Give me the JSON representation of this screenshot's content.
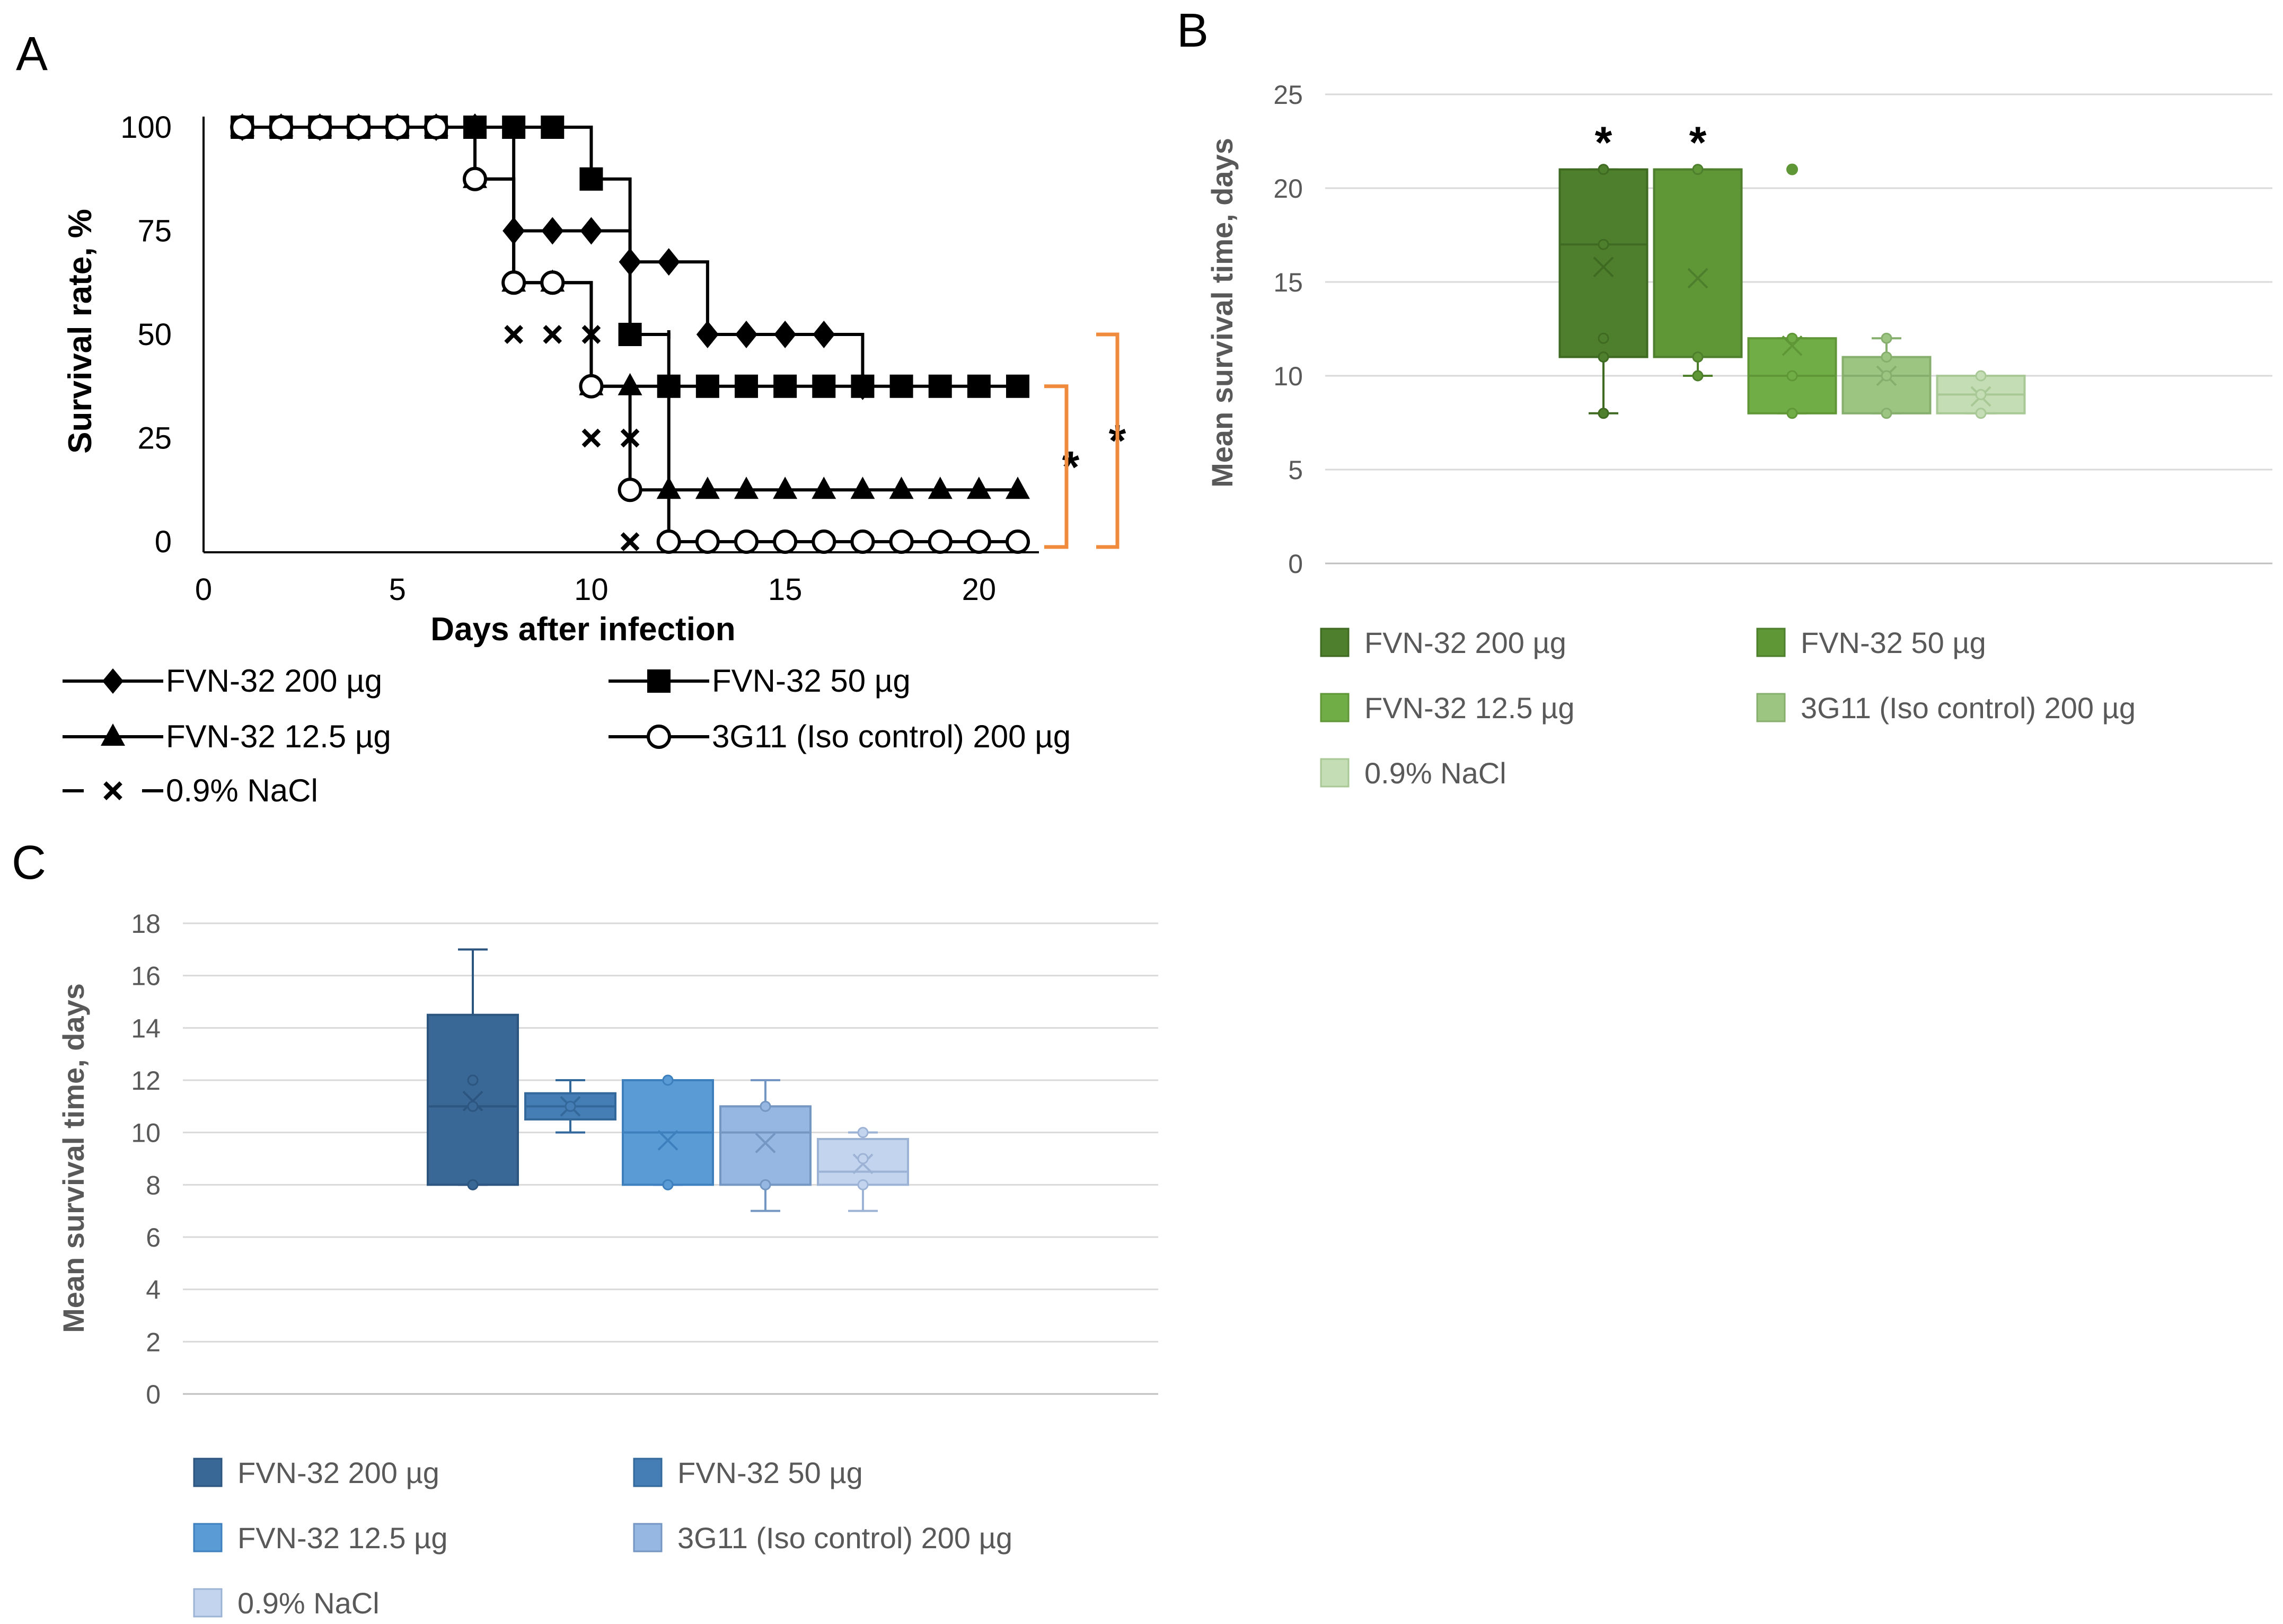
{
  "figure": {
    "panel_labels": [
      "A",
      "B",
      "C"
    ]
  },
  "colors": {
    "orange_bracket": "#F08A3C",
    "green": [
      "#4E7F2C",
      "#5F9636",
      "#70AD47",
      "#9CC581",
      "#C4DDB4"
    ],
    "green_line": [
      "#3F6A22",
      "#4E7F2C",
      "#5F9636",
      "#86AE6C",
      "#A8C895"
    ],
    "blue": [
      "#3A6896",
      "#457EB4",
      "#5B9BD5",
      "#95B7E1",
      "#C3D5EE"
    ],
    "blue_line": [
      "#2C5580",
      "#33689B",
      "#3E7FBE",
      "#7396C2",
      "#9DB3D6"
    ]
  },
  "chart_data": [
    {
      "panel": "A",
      "type": "line",
      "xlabel": "Days after infection",
      "ylabel": "Survival rate, %",
      "xlim": [
        0,
        21
      ],
      "ylim": [
        0,
        100
      ],
      "xticks": [
        0,
        5,
        10,
        15,
        20
      ],
      "yticks": [
        0,
        25,
        50,
        75,
        100
      ],
      "significance": [
        "*",
        "*"
      ],
      "series": [
        {
          "name": "FVN-32 200 µg",
          "marker": "diamond",
          "x": [
            1,
            2,
            3,
            4,
            5,
            6,
            7,
            8,
            9,
            10,
            11,
            12,
            13,
            14,
            15,
            16,
            17
          ],
          "y": [
            100,
            100,
            100,
            100,
            100,
            100,
            100,
            75,
            75,
            75,
            67.5,
            67.5,
            50,
            50,
            50,
            50,
            37.5
          ],
          "stairs": [
            [
              8,
              75
            ],
            [
              11,
              67.5
            ],
            [
              12,
              50
            ],
            [
              17,
              37.5
            ]
          ]
        },
        {
          "name": "FVN-32 50 µg",
          "marker": "square",
          "x": [
            1,
            2,
            3,
            4,
            5,
            6,
            7,
            8,
            9,
            10,
            11,
            12,
            13,
            14,
            15,
            16,
            17,
            18,
            19,
            20,
            21
          ],
          "y": [
            100,
            100,
            100,
            100,
            100,
            100,
            100,
            100,
            100,
            87.5,
            50,
            37.5,
            37.5,
            37.5,
            37.5,
            37.5,
            37.5,
            37.5,
            37.5,
            37.5,
            37.5
          ],
          "stairs": [
            [
              10,
              87.5
            ],
            [
              11,
              50
            ],
            [
              12,
              37.5
            ]
          ]
        },
        {
          "name": "FVN-32 12.5 µg",
          "marker": "triangle",
          "x": [
            1,
            2,
            3,
            4,
            5,
            6,
            7,
            8,
            9,
            10,
            11,
            12,
            13,
            14,
            15,
            16,
            17,
            18,
            19,
            20,
            21
          ],
          "y": [
            100,
            100,
            100,
            100,
            100,
            100,
            87.5,
            62.5,
            62.5,
            37.5,
            37.5,
            12.5,
            12.5,
            12.5,
            12.5,
            12.5,
            12.5,
            12.5,
            12.5,
            12.5,
            12.5
          ],
          "stairs": [
            [
              8,
              62.5
            ],
            [
              10,
              37.5
            ],
            [
              12,
              12.5
            ]
          ]
        },
        {
          "name": "3G11 (Iso control) 200 µg",
          "marker": "circle",
          "x": [
            1,
            2,
            3,
            4,
            5,
            6,
            7,
            8,
            9,
            10,
            11,
            12,
            13,
            14,
            15,
            16,
            17,
            18,
            19,
            20,
            21
          ],
          "y": [
            100,
            100,
            100,
            100,
            100,
            100,
            87.5,
            62.5,
            62.5,
            37.5,
            12.5,
            0,
            0,
            0,
            0,
            0,
            0,
            0,
            0,
            0,
            0
          ],
          "stairs": [
            [
              7,
              87.5
            ],
            [
              8,
              62.5
            ],
            [
              10,
              37.5
            ],
            [
              11,
              12.5
            ],
            [
              12,
              0
            ]
          ]
        },
        {
          "name": "0.9% NaCl",
          "marker": "cross",
          "x": [
            8,
            9,
            10,
            11
          ],
          "y": [
            50,
            50,
            50,
            25
          ],
          "extra": [
            [
              10,
              25
            ],
            [
              11,
              0
            ]
          ]
        }
      ]
    },
    {
      "panel": "B",
      "type": "box",
      "ylabel": "Mean survival time, days",
      "ylim": [
        0,
        25
      ],
      "yticks": [
        0,
        5,
        10,
        15,
        20,
        25
      ],
      "series": [
        {
          "name": "FVN-32 200 µg",
          "whisker_low": 8,
          "q1": 11,
          "median": 17,
          "q3": 21,
          "whisker_high": 21,
          "mean": 15.8,
          "points": [
            21,
            17,
            12,
            11,
            8
          ],
          "significance": "*"
        },
        {
          "name": "FVN-32 50 µg",
          "whisker_low": 10,
          "q1": 11,
          "median": 21,
          "q3": 21,
          "whisker_high": 21,
          "mean": 15.2,
          "points": [
            21,
            11,
            10
          ],
          "significance": "*"
        },
        {
          "name": "FVN-32 12.5 µg",
          "whisker_low": 8,
          "q1": 8,
          "median": 10,
          "q3": 12,
          "whisker_high": 12,
          "mean": 11.6,
          "points": [
            12,
            10,
            8
          ],
          "outliers": [
            21
          ]
        },
        {
          "name": "3G11 (Iso control) 200 µg",
          "whisker_low": 8,
          "q1": 8,
          "median": 10,
          "q3": 11,
          "whisker_high": 12,
          "mean": 10,
          "points": [
            12,
            11,
            10,
            8
          ]
        },
        {
          "name": "0.9% NaCl",
          "whisker_low": 8,
          "q1": 8,
          "median": 9,
          "q3": 10,
          "whisker_high": 10,
          "mean": 8.9,
          "points": [
            10,
            9,
            8
          ]
        }
      ]
    },
    {
      "panel": "C",
      "type": "box",
      "ylabel": "Mean survival time, days",
      "ylim": [
        0,
        18
      ],
      "yticks": [
        0,
        2,
        4,
        6,
        8,
        10,
        12,
        14,
        16,
        18
      ],
      "series": [
        {
          "name": "FVN-32 200 µg",
          "whisker_low": 8,
          "q1": 8,
          "median": 11,
          "q3": 14.5,
          "whisker_high": 17,
          "mean": 11.2,
          "points": [
            12,
            11,
            8
          ]
        },
        {
          "name": "FVN-32 50 µg",
          "whisker_low": 10,
          "q1": 10.5,
          "median": 11,
          "q3": 11.5,
          "whisker_high": 12,
          "mean": 11,
          "points": [
            11
          ]
        },
        {
          "name": "FVN-32 12.5 µg",
          "whisker_low": 8,
          "q1": 8,
          "median": 10,
          "q3": 12,
          "whisker_high": 12,
          "mean": 9.7,
          "points": [
            12,
            8
          ]
        },
        {
          "name": "3G11 (Iso control) 200 µg",
          "whisker_low": 7,
          "q1": 8,
          "median": 10,
          "q3": 11,
          "whisker_high": 12,
          "mean": 9.6,
          "points": [
            11,
            8
          ]
        },
        {
          "name": "0.9% NaCl",
          "whisker_low": 7,
          "q1": 8,
          "median": 8.5,
          "q3": 9.75,
          "whisker_high": 10,
          "mean": 8.8,
          "points": [
            10,
            9,
            8
          ]
        }
      ]
    }
  ]
}
